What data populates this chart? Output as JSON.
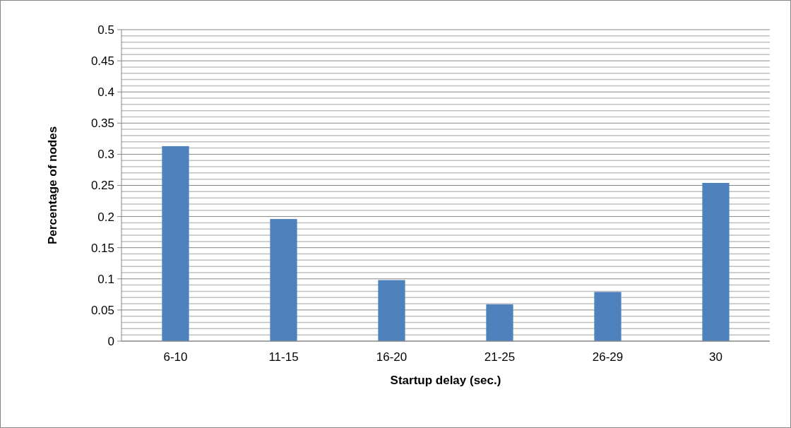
{
  "chart_data": {
    "type": "bar",
    "xlabel": "Startup delay (sec.)",
    "ylabel": "Percentage of nodes",
    "categories": [
      "6-10",
      "11-15",
      "16-20",
      "21-25",
      "26-29",
      "30"
    ],
    "values": [
      0.313,
      0.196,
      0.098,
      0.059,
      0.079,
      0.254
    ],
    "color": "#4f81bd",
    "ylim": [
      0,
      0.5
    ],
    "yticks": [
      0,
      {
        "value": 0.01,
        "label": null
      },
      {
        "value": 0.02,
        "label": null
      },
      {
        "value": 0.03,
        "label": null
      },
      {
        "value": 0.04,
        "label": null
      },
      0.05,
      {
        "value": 0.06,
        "label": null
      },
      {
        "value": 0.07,
        "label": null
      },
      {
        "value": 0.08,
        "label": null
      },
      {
        "value": 0.09,
        "label": null
      },
      0.1,
      {
        "value": 0.11,
        "label": null
      },
      {
        "value": 0.12,
        "label": null
      },
      {
        "value": 0.13,
        "label": null
      },
      {
        "value": 0.14,
        "label": null
      },
      0.15,
      {
        "value": 0.16,
        "label": null
      },
      {
        "value": 0.17,
        "label": null
      },
      {
        "value": 0.18,
        "label": null
      },
      {
        "value": 0.19,
        "label": null
      },
      0.2,
      {
        "value": 0.21,
        "label": null
      },
      {
        "value": 0.22,
        "label": null
      },
      {
        "value": 0.23,
        "label": null
      },
      {
        "value": 0.24,
        "label": null
      },
      0.25,
      {
        "value": 0.26,
        "label": null
      },
      {
        "value": 0.27,
        "label": null
      },
      {
        "value": 0.28,
        "label": null
      },
      {
        "value": 0.29,
        "label": null
      },
      0.3,
      {
        "value": 0.31,
        "label": null
      },
      {
        "value": 0.32,
        "label": null
      },
      {
        "value": 0.33,
        "label": null
      },
      {
        "value": 0.34,
        "label": null
      },
      0.35,
      {
        "value": 0.36,
        "label": null
      },
      {
        "value": 0.37,
        "label": null
      },
      {
        "value": 0.38,
        "label": null
      },
      {
        "value": 0.39,
        "label": null
      },
      0.4,
      {
        "value": 0.41,
        "label": null
      },
      {
        "value": 0.42,
        "label": null
      },
      {
        "value": 0.43,
        "label": null
      },
      {
        "value": 0.44,
        "label": null
      },
      0.45,
      {
        "value": 0.46,
        "label": null
      },
      {
        "value": 0.47,
        "label": null
      },
      {
        "value": 0.48,
        "label": null
      },
      {
        "value": 0.49,
        "label": null
      },
      0.5
    ],
    "grid": true
  }
}
